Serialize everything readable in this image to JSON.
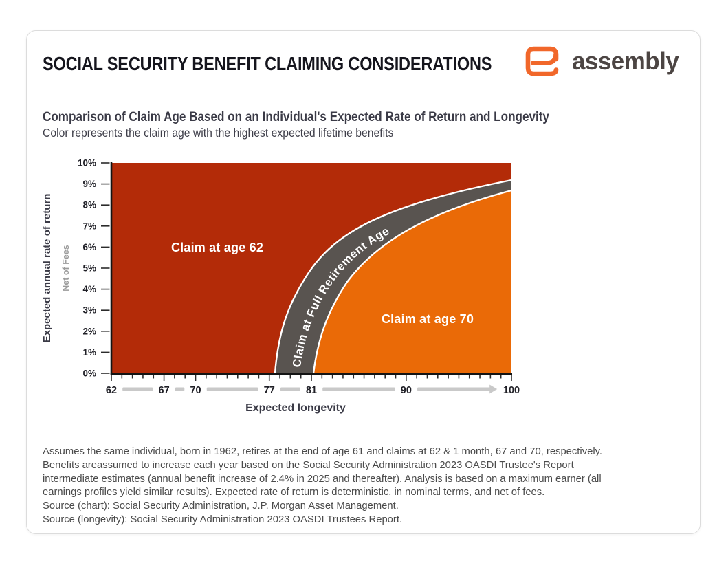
{
  "page": {
    "background": "#ffffff"
  },
  "header": {
    "title": "SOCIAL SECURITY BENEFIT CLAIMING CONSIDERATIONS",
    "brand": {
      "name": "assembly",
      "icon": "assembly-cask-icon",
      "color": "#f1672a",
      "text_color": "#4c4543"
    }
  },
  "chart_heading": {
    "title": "Comparison of Claim Age Based on an Individual's Expected Rate of Return and Longevity",
    "subtitle": "Color represents the claim age with the highest expected lifetime benefits"
  },
  "chart_data": {
    "type": "area",
    "title": "Comparison of Claim Age Based on an Individual's Expected Rate of Return and Longevity",
    "subtitle": "Color represents the claim age with the highest expected lifetime benefits",
    "grid": false,
    "legend_position": "labels-inside-plot",
    "x_axis": {
      "label": "Expected longevity",
      "range": [
        62,
        100
      ],
      "ticks": [
        62,
        67,
        70,
        77,
        81,
        90,
        100
      ],
      "minor_tick_step": 1
    },
    "y_axis": {
      "label": "Expected annual rate of return",
      "sublabel": "Net of Fees",
      "range_percent": [
        0,
        10
      ],
      "ticks": [
        "10%",
        "9%",
        "8%",
        "7%",
        "6%",
        "5%",
        "4%",
        "3%",
        "2%",
        "1%",
        "0%"
      ]
    },
    "regions": [
      {
        "name": "Claim at age 62",
        "color": "#b32b08",
        "position": "upper-left: shorter longevity and/or higher expected returns"
      },
      {
        "name": "Claim at Full Retirement Age",
        "color": "#595450",
        "position": "curved band between the other two regions",
        "border_color": "#ffffff"
      },
      {
        "name": "Claim at age 70",
        "color": "#ea6a07",
        "position": "lower-right: longer longevity and lower expected returns"
      }
    ],
    "fra_band_boundaries": {
      "claim62_edge_age_vs_return_pct": [
        [
          77.5,
          0
        ],
        [
          79.5,
          2.7
        ],
        [
          81.3,
          4.3
        ],
        [
          83.9,
          6.0
        ],
        [
          87.3,
          7.3
        ],
        [
          91.4,
          8.3
        ],
        [
          96.5,
          8.9
        ],
        [
          100,
          9.2
        ]
      ],
      "claim70_edge_age_vs_return_pct": [
        [
          81.2,
          0
        ],
        [
          83.0,
          2.7
        ],
        [
          84.7,
          4.3
        ],
        [
          87.5,
          6.0
        ],
        [
          91.1,
          7.3
        ],
        [
          95.0,
          8.2
        ],
        [
          100,
          8.8
        ]
      ]
    }
  },
  "footnote": {
    "lines": [
      "Assumes the same individual, born in 1962, retires at the end of age 61 and claims at 62 & 1 month, 67 and 70, respectively.",
      "Benefits areassumed to increase each year based on the Social Security Administration 2023 OASDI Trustee's Report",
      "intermediate estimates (annual benefit increase of 2.4% in 2025 and thereafter). Analysis is based on a maximum earner (all",
      "earnings profiles yield similar results). Expected rate of return is deterministic, in nominal terms, and net of fees.",
      "Source (chart): Social Security Administration, J.P. Morgan Asset Management.",
      "Source (longevity): Social Security Administration 2023 OASDI Trustees Report."
    ]
  }
}
